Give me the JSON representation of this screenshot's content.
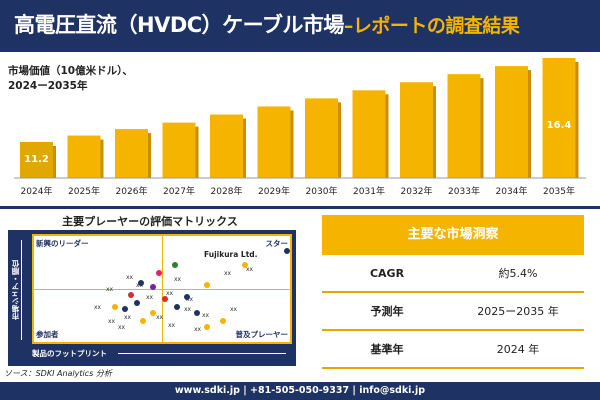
{
  "header": {
    "title": "高電圧直流（HVDC）ケーブル市場",
    "subtitle": "–レポートの調査結果"
  },
  "chart_label": {
    "line1": "市場価値（10億米ドル）、",
    "line2": "2024ー2035年"
  },
  "chart_data": {
    "type": "bar",
    "categories": [
      "2024年",
      "2025年",
      "2026年",
      "2027年",
      "2028年",
      "2029年",
      "2030年",
      "2031年",
      "2032年",
      "2033年",
      "2034年",
      "2035年"
    ],
    "values": [
      11.2,
      11.6,
      12.0,
      12.4,
      12.9,
      13.4,
      13.9,
      14.4,
      14.9,
      15.4,
      15.9,
      16.4
    ],
    "labeled": {
      "2024年": "11.2",
      "2035年": "16.4"
    },
    "ylim": [
      0,
      17
    ],
    "colors": {
      "bar": "#f5b400",
      "bar_first": "#e0a800",
      "shadow": "#c89000"
    }
  },
  "matrix": {
    "title": "主要プレーヤーの評価マトリックス",
    "y_axis": "市場シェア・順位",
    "x_axis": "製品のフットプリント",
    "quadrants": {
      "top_left": "新興のリーダー",
      "top_right": "スター",
      "bottom_left": "参加者",
      "bottom_right": "普及プレーヤー"
    },
    "highlight_company": "Fujikura Ltd.",
    "marker_text": "xx"
  },
  "info_table": {
    "header": "主要な市場洞察",
    "rows": [
      {
        "key": "CAGR",
        "value": "約5.4%"
      },
      {
        "key": "予測年",
        "value": "2025ー2035 年"
      },
      {
        "key": "基準年",
        "value": "2024 年"
      }
    ]
  },
  "source": "ソース：SDKI Analytics 分析",
  "footer": "www.sdki.jp | +81-505-050-9337 | info@sdki.jp"
}
